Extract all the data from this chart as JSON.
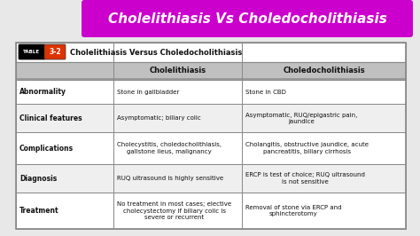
{
  "title": "Cholelithiasis Vs Choledocholithiasis",
  "title_bg": "#cc00cc",
  "title_color": "#ffffff",
  "table_title": "Cholelithiasis Versus Choledocholithiasis",
  "header_row": [
    "",
    "Cholelithiasis",
    "Choledocholithiasis"
  ],
  "rows": [
    {
      "label": "Abnormality",
      "col1": "Stone in gallbladder",
      "col2": "Stone in CBD"
    },
    {
      "label": "Clinical features",
      "col1": "Asymptomatic; biliary colic",
      "col2": "Asymptomatic, RUQ/epigastric pain,\njaundice"
    },
    {
      "label": "Complications",
      "col1": "Cholecystitis, choledocholithiasis,\ngallstone ileus, malignancy",
      "col2": "Cholangitis, obstructive jaundice, acute\npancreatitis, biliary cirrhosis"
    },
    {
      "label": "Diagnosis",
      "col1": "RUQ ultrasound is highly sensitive",
      "col2": "ERCP is test of choice; RUQ ultrasound\nis not sensitive"
    },
    {
      "label": "Treatment",
      "col1": "No treatment in most cases; elective\ncholecystectomy if biliary colic is\nsevere or recurrent",
      "col2": "Removal of stone via ERCP and\nsphincterotomy"
    }
  ],
  "header_bg": "#c0c0c0",
  "subheader_bg": "#d8d8d8",
  "row_bg_odd": "#ffffff",
  "row_bg_even": "#efefef",
  "border_color": "#888888",
  "text_color": "#111111",
  "label_color": "#111111",
  "bg_color": "#e8e8e8",
  "fig_w": 4.74,
  "fig_h": 2.66,
  "dpi": 100
}
